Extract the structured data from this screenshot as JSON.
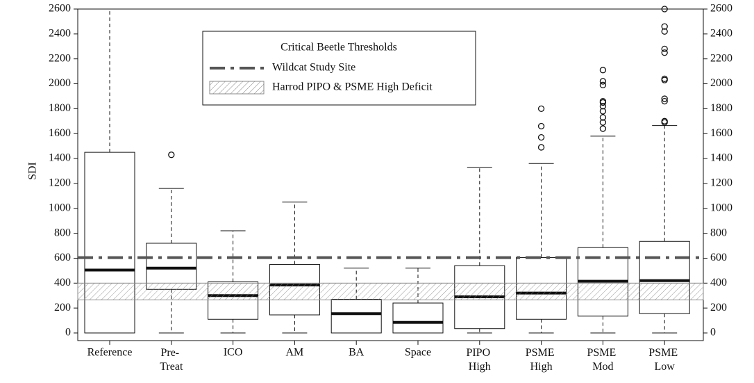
{
  "chart_data": {
    "type": "box",
    "ylabel": "SDI",
    "categories": [
      "Reference",
      "Pre- Treat",
      "ICO",
      "AM",
      "BA",
      "Space",
      "PIPO High",
      "PSME High",
      "PSME Mod",
      "PSME Low"
    ],
    "boxes": [
      {
        "min": 0,
        "q1": 0,
        "median": 505,
        "q3": 1450,
        "max": 2600,
        "outliers": []
      },
      {
        "min": 0,
        "q1": 350,
        "median": 520,
        "q3": 720,
        "max": 1160,
        "outliers": [
          1430
        ]
      },
      {
        "min": 0,
        "q1": 110,
        "median": 300,
        "q3": 410,
        "max": 820,
        "outliers": []
      },
      {
        "min": 0,
        "q1": 145,
        "median": 385,
        "q3": 550,
        "max": 1050,
        "outliers": []
      },
      {
        "min": 0,
        "q1": 0,
        "median": 155,
        "q3": 270,
        "max": 520,
        "outliers": []
      },
      {
        "min": 0,
        "q1": 0,
        "median": 85,
        "q3": 240,
        "max": 520,
        "outliers": []
      },
      {
        "min": 0,
        "q1": 35,
        "median": 290,
        "q3": 540,
        "max": 1330,
        "outliers": []
      },
      {
        "min": 0,
        "q1": 110,
        "median": 320,
        "q3": 605,
        "max": 1360,
        "outliers": [
          1490,
          1570,
          1660,
          1800
        ]
      },
      {
        "min": 0,
        "q1": 135,
        "median": 415,
        "q3": 685,
        "max": 1580,
        "outliers": [
          1640,
          1690,
          1730,
          1780,
          1820,
          1850,
          1860,
          1990,
          2020,
          2110
        ]
      },
      {
        "min": 0,
        "q1": 155,
        "median": 420,
        "q3": 735,
        "max": 1665,
        "outliers": [
          1690,
          1700,
          1860,
          1880,
          2030,
          2040,
          2250,
          2280,
          2420,
          2460,
          2600
        ]
      }
    ],
    "legend_title": "Critical Beetle Thresholds",
    "reference_lines": [
      {
        "name": "Wildcat Study Site",
        "value": 605,
        "color": "#555555"
      }
    ],
    "bands": [
      {
        "name": "Harrod PIPO & PSME High Deficit",
        "range": [
          265,
          400
        ]
      }
    ],
    "ylim": [
      0,
      2600
    ],
    "yticks": [
      0,
      200,
      400,
      600,
      800,
      1000,
      1200,
      1400,
      1600,
      1800,
      2000,
      2200,
      2400,
      2600
    ],
    "y2ticks": [
      0,
      200,
      400,
      600,
      800,
      1000,
      1200,
      1400,
      1600,
      1800,
      2000,
      2200,
      2400,
      2600
    ]
  }
}
